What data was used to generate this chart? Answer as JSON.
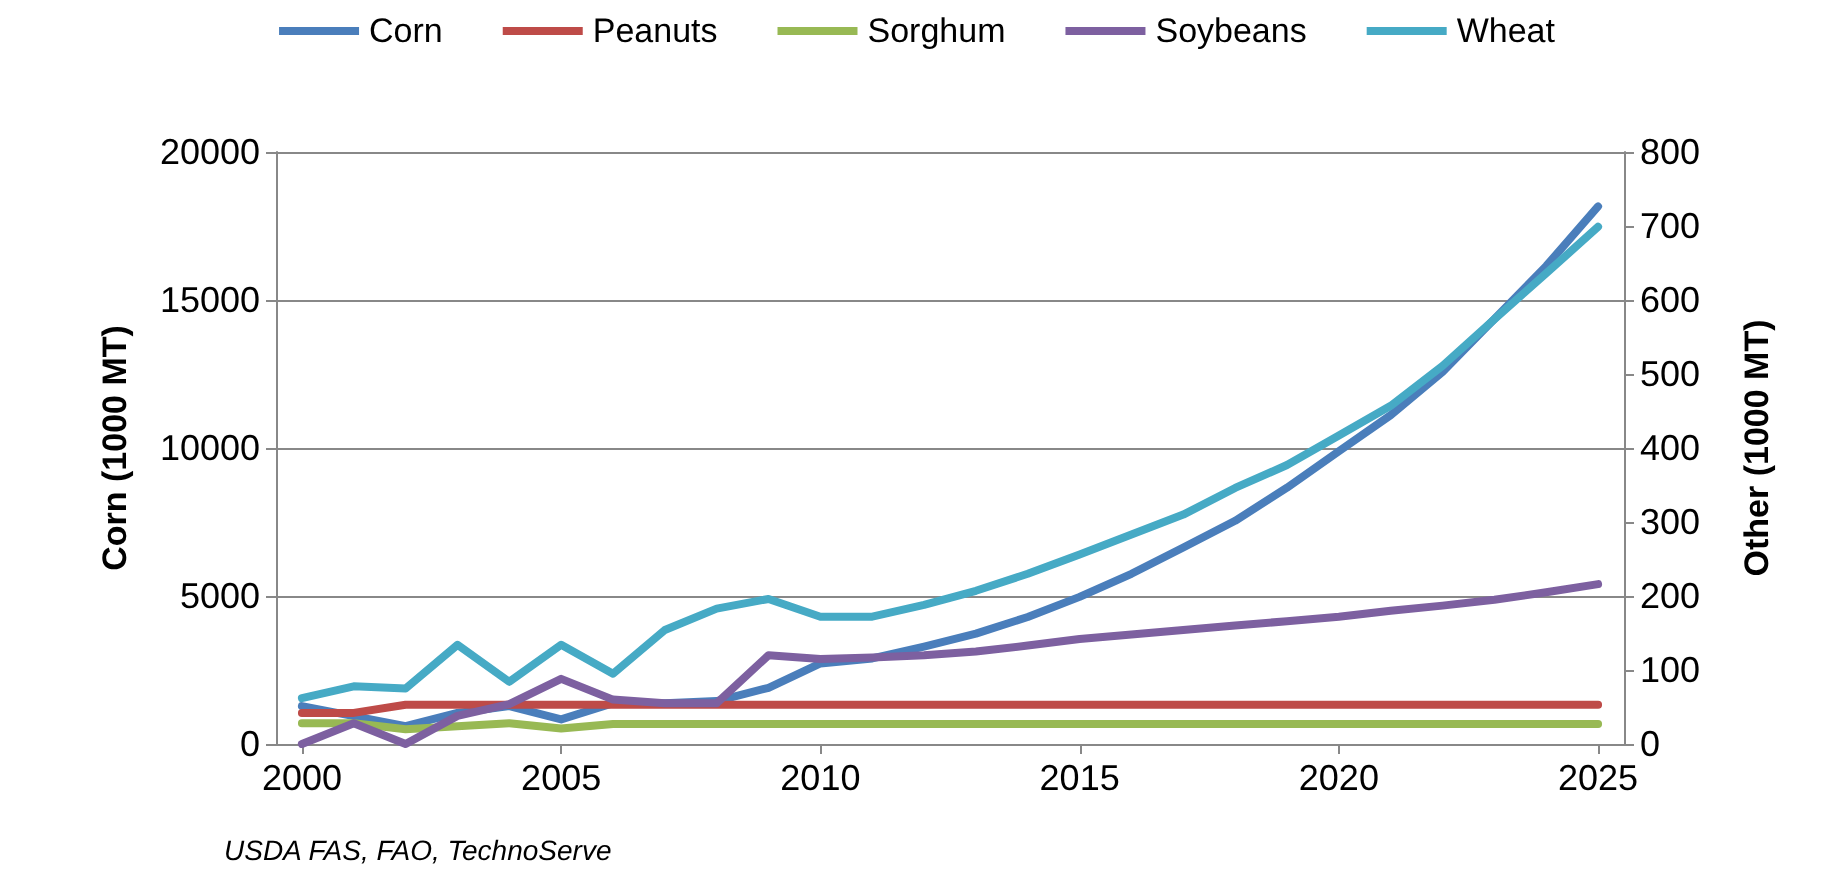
{
  "chart_data": {
    "type": "line",
    "ylabel": "Corn (1000 MT)",
    "y2label": "Other (1000 MT)",
    "x": [
      2000,
      2001,
      2002,
      2003,
      2004,
      2005,
      2006,
      2007,
      2008,
      2009,
      2010,
      2011,
      2012,
      2013,
      2014,
      2015,
      2016,
      2017,
      2018,
      2019,
      2020,
      2021,
      2022,
      2023,
      2024,
      2025
    ],
    "series": [
      {
        "name": "Corn",
        "color": "#4a7ebb",
        "values": [
          1280,
          940,
          600,
          1050,
          1280,
          830,
          1380,
          1380,
          1450,
          1900,
          2720,
          2890,
          3290,
          3730,
          4290,
          4970,
          5750,
          6640,
          7540,
          8660,
          9890,
          11110,
          12570,
          14360,
          16150,
          18160
        ]
      },
      {
        "name": "Peanuts",
        "color": "#be4b48",
        "axis": "y2",
        "values": [
          42,
          42,
          53,
          53,
          53,
          53,
          53,
          53,
          53,
          53,
          53,
          53,
          53,
          53,
          53,
          53,
          53,
          53,
          53,
          53,
          53,
          53,
          53,
          53,
          53,
          53
        ]
      },
      {
        "name": "Sorghum",
        "color": "#98b954",
        "axis": "y2",
        "values": [
          28,
          28,
          20,
          24,
          28,
          21,
          27,
          27,
          27,
          27,
          27,
          27,
          27,
          27,
          27,
          27,
          27,
          27,
          27,
          27,
          27,
          27,
          27,
          27,
          27,
          27
        ]
      },
      {
        "name": "Soybeans",
        "color": "#7d60a0",
        "axis": "y2",
        "values": [
          0,
          28,
          0,
          38,
          54,
          88,
          60,
          55,
          55,
          120,
          115,
          117,
          120,
          125,
          133,
          142,
          148,
          154,
          160,
          166,
          172,
          180,
          187,
          195,
          205,
          216
        ]
      },
      {
        "name": "Wheat",
        "color": "#46aac5",
        "axis": "y2",
        "values": [
          62,
          78,
          75,
          134,
          84,
          134,
          95,
          154,
          183,
          196,
          172,
          172,
          188,
          207,
          230,
          256,
          283,
          310,
          346,
          377,
          417,
          457,
          511,
          574,
          636,
          699
        ]
      }
    ],
    "xlim": [
      1999.5,
      2025.5
    ],
    "xticks": [
      2000,
      2005,
      2010,
      2015,
      2020,
      2025
    ],
    "ylim": [
      0,
      20000
    ],
    "yticks": [
      0,
      5000,
      10000,
      15000,
      20000
    ],
    "y2lim": [
      0,
      800
    ],
    "y2ticks": [
      0,
      100,
      200,
      300,
      400,
      500,
      600,
      700,
      800
    ],
    "grid": "y",
    "legend": "top",
    "marker": "none",
    "line_style": "solid",
    "annotations": [
      "USDA FAS, FAO, TechnoServe"
    ]
  }
}
